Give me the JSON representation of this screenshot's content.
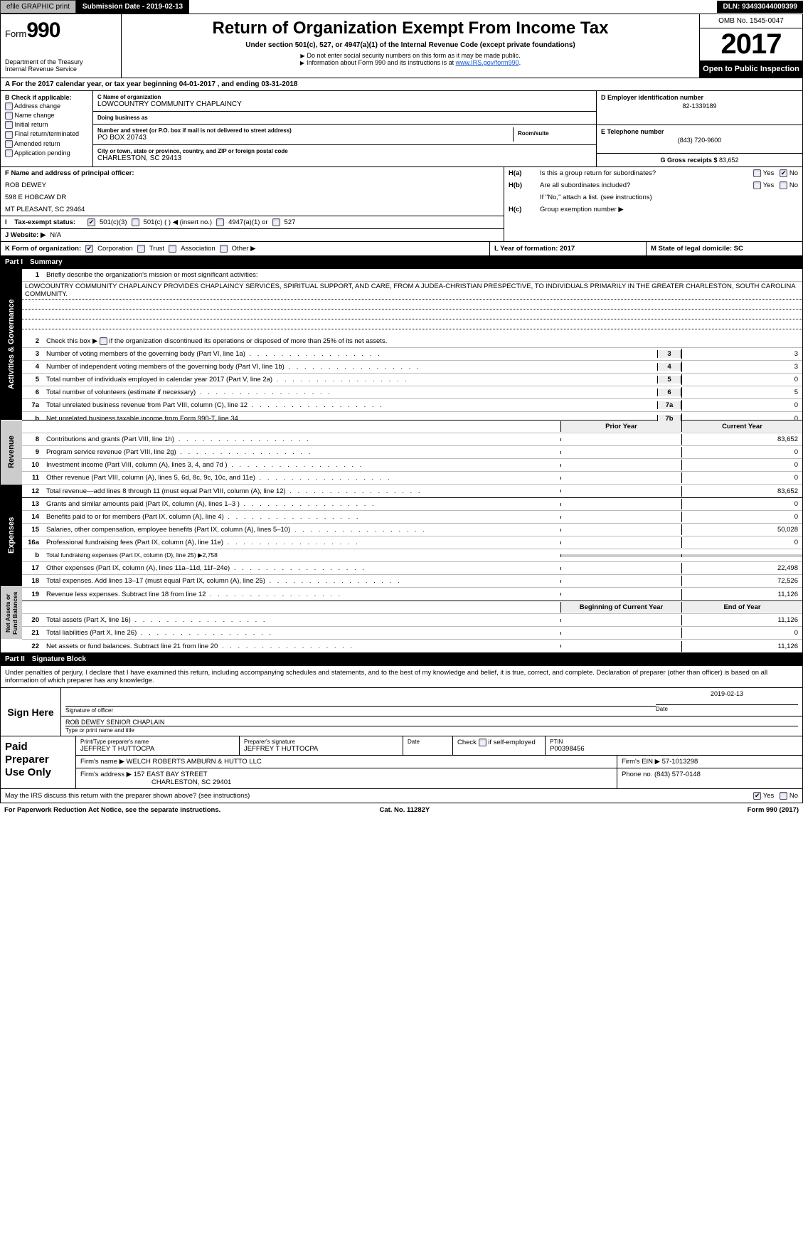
{
  "topbar": {
    "efile": "efile GRAPHIC print",
    "subdate_lbl": "Submission Date - 2019-02-13",
    "dln": "DLN: 93493044009399"
  },
  "header": {
    "form_prefix": "Form",
    "form_no": "990",
    "dept": "Department of the Treasury\nInternal Revenue Service",
    "title": "Return of Organization Exempt From Income Tax",
    "subtitle": "Under section 501(c), 527, or 4947(a)(1) of the Internal Revenue Code (except private foundations)",
    "note1": "Do not enter social security numbers on this form as it may be made public.",
    "note2": "Information about Form 990 and its instructions is at ",
    "link": "www.IRS.gov/form990",
    "omb": "OMB No. 1545-0047",
    "year": "2017",
    "open": "Open to Public Inspection"
  },
  "row_a": "A   For the 2017 calendar year, or tax year beginning 04-01-2017       , and ending 03-31-2018",
  "col_b": {
    "lead": "B  Check if applicable:",
    "items": [
      "Address change",
      "Name change",
      "Initial return",
      "Final return/terminated",
      "Amended return",
      "Application pending"
    ]
  },
  "col_c": {
    "name_lbl": "C Name of organization",
    "name": "LOWCOUNTRY COMMUNITY CHAPLAINCY",
    "dba_lbl": "Doing business as",
    "dba": "",
    "street_lbl": "Number and street (or P.O. box if mail is not delivered to street address)",
    "street": "PO BOX 20743",
    "room_lbl": "Room/suite",
    "city_lbl": "City or town, state or province, country, and ZIP or foreign postal code",
    "city": "CHARLESTON, SC  29413"
  },
  "col_deg": {
    "d_lbl": "D Employer identification number",
    "d_val": "82-1339189",
    "e_lbl": "E Telephone number",
    "e_val": "(843) 720-9600",
    "g_lbl": "G Gross receipts $ ",
    "g_val": "83,652"
  },
  "section_f": {
    "f_lbl": "F  Name and address of principal officer:",
    "f_name": "ROB DEWEY",
    "f_addr1": "598 E HOBCAW DR",
    "f_addr2": "MT PLEASANT, SC  29464",
    "i_lbl": "Tax-exempt status:",
    "i_opts": [
      "501(c)(3)",
      "501(c) (  )  ◀ (insert no.)",
      "4947(a)(1) or",
      "527"
    ],
    "j_lbl": "J   Website: ▶",
    "j_val": "N/A"
  },
  "section_h": {
    "ha_lbl": "H(a)",
    "ha_txt": "Is this a group return for subordinates?",
    "hb_lbl": "H(b)",
    "hb_txt": "Are all subordinates included?",
    "hb_note": "If \"No,\" attach a list. (see instructions)",
    "hc_lbl": "H(c)",
    "hc_txt": "Group exemption number ▶",
    "yes": "Yes",
    "no": "No"
  },
  "row_klm": {
    "k": "K Form of organization:",
    "k_opts": [
      "Corporation",
      "Trust",
      "Association",
      "Other ▶"
    ],
    "l": "L Year of formation: 2017",
    "m": "M State of legal domicile: SC"
  },
  "part1": {
    "part": "Part I",
    "title": "Summary"
  },
  "summary": {
    "q1": "Briefly describe the organization's mission or most significant activities:",
    "mission": "LOWCOUNTRY COMMUNITY CHAPLAINCY PROVIDES CHAPLAINCY SERVICES, SPIRITUAL SUPPORT, AND CARE, FROM A JUDEA-CHRISTIAN PRESPECTIVE, TO INDIVIDUALS PRIMARILY IN THE GREATER CHARLESTON, SOUTH CAROLINA COMMUNITY.",
    "q2": "Check this box ▶      if the organization discontinued its operations or disposed of more than 25% of its net assets.",
    "lines_ag": [
      {
        "n": "3",
        "t": "Number of voting members of the governing body (Part VI, line 1a)",
        "box": "3",
        "v": "3"
      },
      {
        "n": "4",
        "t": "Number of independent voting members of the governing body (Part VI, line 1b)",
        "box": "4",
        "v": "3"
      },
      {
        "n": "5",
        "t": "Total number of individuals employed in calendar year 2017 (Part V, line 2a)",
        "box": "5",
        "v": "0"
      },
      {
        "n": "6",
        "t": "Total number of volunteers (estimate if necessary)",
        "box": "6",
        "v": "5"
      },
      {
        "n": "7a",
        "t": "Total unrelated business revenue from Part VIII, column (C), line 12",
        "box": "7a",
        "v": "0"
      },
      {
        "n": "b",
        "t": "Net unrelated business taxable income from Form 990-T, line 34",
        "box": "7b",
        "v": "0"
      }
    ],
    "col_hdr1": "Prior Year",
    "col_hdr2": "Current Year",
    "revenue": [
      {
        "n": "8",
        "t": "Contributions and grants (Part VIII, line 1h)",
        "c1": "",
        "c2": "83,652"
      },
      {
        "n": "9",
        "t": "Program service revenue (Part VIII, line 2g)",
        "c1": "",
        "c2": "0"
      },
      {
        "n": "10",
        "t": "Investment income (Part VIII, column (A), lines 3, 4, and 7d )",
        "c1": "",
        "c2": "0"
      },
      {
        "n": "11",
        "t": "Other revenue (Part VIII, column (A), lines 5, 6d, 8c, 9c, 10c, and 11e)",
        "c1": "",
        "c2": "0"
      },
      {
        "n": "12",
        "t": "Total revenue—add lines 8 through 11 (must equal Part VIII, column (A), line 12)",
        "c1": "",
        "c2": "83,652"
      }
    ],
    "expenses": [
      {
        "n": "13",
        "t": "Grants and similar amounts paid (Part IX, column (A), lines 1–3 )",
        "c1": "",
        "c2": "0"
      },
      {
        "n": "14",
        "t": "Benefits paid to or for members (Part IX, column (A), line 4)",
        "c1": "",
        "c2": "0"
      },
      {
        "n": "15",
        "t": "Salaries, other compensation, employee benefits (Part IX, column (A), lines 5–10)",
        "c1": "",
        "c2": "50,028"
      },
      {
        "n": "16a",
        "t": "Professional fundraising fees (Part IX, column (A), line 11e)",
        "c1": "",
        "c2": "0"
      },
      {
        "n": "b",
        "t": "Total fundraising expenses (Part IX, column (D), line 25) ▶2,758",
        "c1": "shade",
        "c2": "shade"
      },
      {
        "n": "17",
        "t": "Other expenses (Part IX, column (A), lines 11a–11d, 11f–24e)",
        "c1": "",
        "c2": "22,498"
      },
      {
        "n": "18",
        "t": "Total expenses. Add lines 13–17 (must equal Part IX, column (A), line 25)",
        "c1": "",
        "c2": "72,526"
      },
      {
        "n": "19",
        "t": "Revenue less expenses. Subtract line 18 from line 12",
        "c1": "",
        "c2": "11,126"
      }
    ],
    "col_hdr3": "Beginning of Current Year",
    "col_hdr4": "End of Year",
    "netassets": [
      {
        "n": "20",
        "t": "Total assets (Part X, line 16)",
        "c1": "",
        "c2": "11,126"
      },
      {
        "n": "21",
        "t": "Total liabilities (Part X, line 26)",
        "c1": "",
        "c2": "0"
      },
      {
        "n": "22",
        "t": "Net assets or fund balances. Subtract line 21 from line 20",
        "c1": "",
        "c2": "11,126"
      }
    ]
  },
  "vtabs": {
    "ag": "Activities & Governance",
    "rev": "Revenue",
    "exp": "Expenses",
    "na": "Net Assets or\nFund Balances"
  },
  "part2": {
    "part": "Part II",
    "title": "Signature Block",
    "decl": "Under penalties of perjury, I declare that I have examined this return, including accompanying schedules and statements, and to the best of my knowledge and belief, it is true, correct, and complete. Declaration of preparer (other than officer) is based on all information of which preparer has any knowledge.",
    "sign_here": "Sign Here",
    "sig_officer_lbl": "Signature of officer",
    "sig_date": "2019-02-13",
    "date_lbl": "Date",
    "officer_name": "ROB DEWEY SENIOR CHAPLAIN",
    "officer_lbl": "Type or print name and title"
  },
  "paid": {
    "title": "Paid Preparer Use Only",
    "prep_name_lbl": "Print/Type preparer's name",
    "prep_name": "JEFFREY T HUTTOCPA",
    "prep_sig_lbl": "Preparer's signature",
    "prep_sig": "JEFFREY T HUTTOCPA",
    "date_lbl": "Date",
    "check_lbl": "Check        if self-employed",
    "ptin_lbl": "PTIN",
    "ptin": "P00398456",
    "firm_name_lbl": "Firm's name     ▶",
    "firm_name": "WELCH ROBERTS AMBURN & HUTTO LLC",
    "firm_ein_lbl": "Firm's EIN ▶",
    "firm_ein": "57-1013298",
    "firm_addr_lbl": "Firm's address ▶",
    "firm_addr": "157 EAST BAY STREET",
    "firm_city": "CHARLESTON, SC  29401",
    "phone_lbl": "Phone no.",
    "phone": "(843) 577-0148"
  },
  "irs_discuss": "May the IRS discuss this return with the preparer shown above? (see instructions)",
  "footer": {
    "left": "For Paperwork Reduction Act Notice, see the separate instructions.",
    "mid": "Cat. No. 11282Y",
    "right": "Form 990 (2017)"
  }
}
